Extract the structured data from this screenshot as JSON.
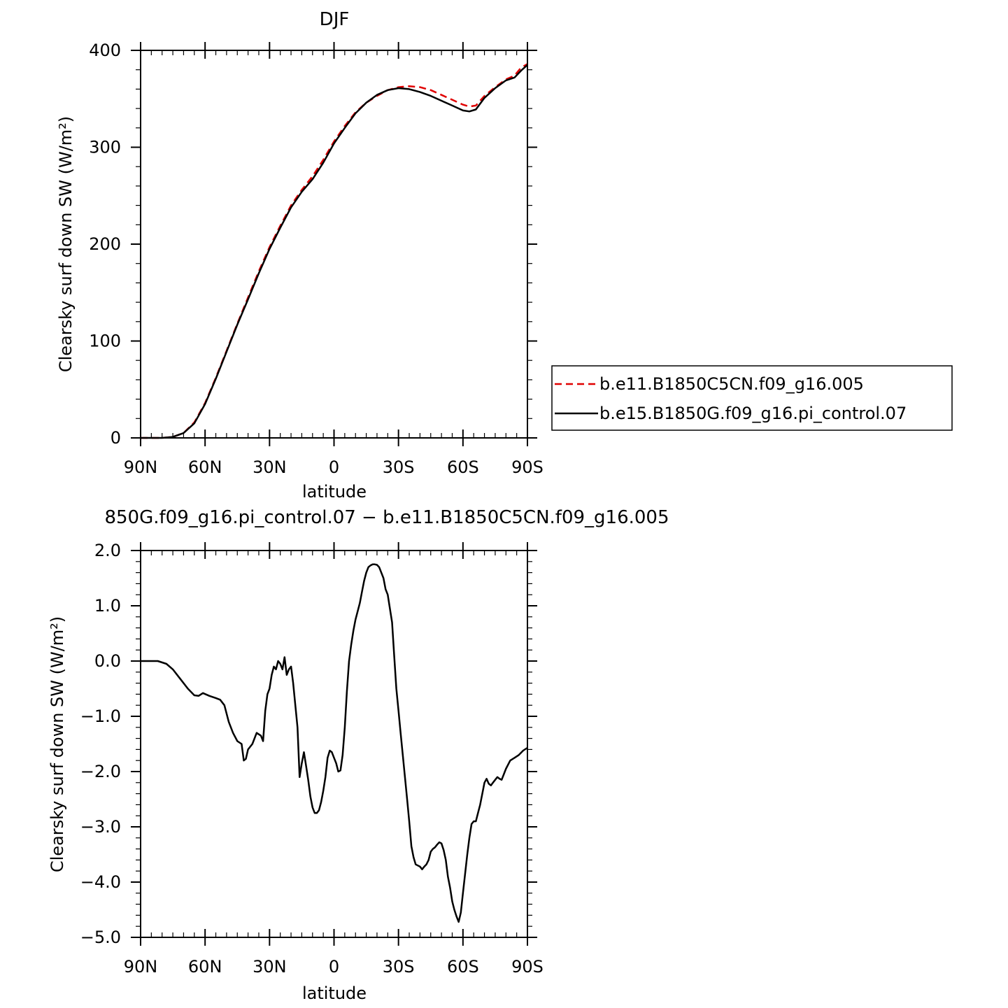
{
  "chart_data": [
    {
      "type": "line",
      "title": "DJF",
      "xlabel": "latitude",
      "ylabel": "Clearsky surf down SW (W/m²)",
      "xlim": [
        -90,
        90
      ],
      "ylim": [
        0,
        400
      ],
      "x_ticks": [
        {
          "value": -90,
          "label": "90N"
        },
        {
          "value": -60,
          "label": "60N"
        },
        {
          "value": -30,
          "label": "30N"
        },
        {
          "value": 0,
          "label": "0"
        },
        {
          "value": 30,
          "label": "30S"
        },
        {
          "value": 60,
          "label": "60S"
        },
        {
          "value": 90,
          "label": "90S"
        }
      ],
      "y_ticks": [
        {
          "value": 0,
          "label": "0"
        },
        {
          "value": 100,
          "label": "100"
        },
        {
          "value": 200,
          "label": "200"
        },
        {
          "value": 300,
          "label": "300"
        },
        {
          "value": 400,
          "label": "400"
        }
      ],
      "legend_position": "right",
      "series": [
        {
          "name": "b.e11.B1850C5CN.f09_g16.005",
          "color": "#e00000",
          "dash": true,
          "points": [
            [
              -90,
              0
            ],
            [
              -80,
              0
            ],
            [
              -75,
              1
            ],
            [
              -70,
              5
            ],
            [
              -65,
              16
            ],
            [
              -60,
              36
            ],
            [
              -55,
              62
            ],
            [
              -50,
              90
            ],
            [
              -45,
              118
            ],
            [
              -40,
              145
            ],
            [
              -35,
              172
            ],
            [
              -30,
              197
            ],
            [
              -25,
              219
            ],
            [
              -20,
              240
            ],
            [
              -15,
              256
            ],
            [
              -10,
              270
            ],
            [
              -5,
              287
            ],
            [
              0,
              306
            ],
            [
              5,
              322
            ],
            [
              10,
              336
            ],
            [
              15,
              346
            ],
            [
              20,
              353
            ],
            [
              25,
              359
            ],
            [
              30,
              362
            ],
            [
              35,
              363
            ],
            [
              40,
              362
            ],
            [
              45,
              359
            ],
            [
              50,
              354
            ],
            [
              55,
              349
            ],
            [
              60,
              344
            ],
            [
              63,
              342
            ],
            [
              66,
              343
            ],
            [
              70,
              353
            ],
            [
              75,
              362
            ],
            [
              80,
              370
            ],
            [
              84,
              374
            ],
            [
              87,
              382
            ],
            [
              90,
              386
            ]
          ]
        },
        {
          "name": "b.e15.B1850G.f09_g16.pi_control.07",
          "color": "#000000",
          "dash": false,
          "points": [
            [
              -90,
              0
            ],
            [
              -80,
              0
            ],
            [
              -75,
              1
            ],
            [
              -70,
              5
            ],
            [
              -65,
              15
            ],
            [
              -60,
              35
            ],
            [
              -55,
              61
            ],
            [
              -50,
              89
            ],
            [
              -45,
              117
            ],
            [
              -40,
              143
            ],
            [
              -35,
              170
            ],
            [
              -30,
              195
            ],
            [
              -25,
              217
            ],
            [
              -20,
              238
            ],
            [
              -15,
              254
            ],
            [
              -10,
              267
            ],
            [
              -5,
              284
            ],
            [
              0,
              304
            ],
            [
              5,
              320
            ],
            [
              10,
              335
            ],
            [
              15,
              346
            ],
            [
              20,
              354
            ],
            [
              25,
              359
            ],
            [
              30,
              361
            ],
            [
              35,
              360
            ],
            [
              40,
              357
            ],
            [
              45,
              353
            ],
            [
              50,
              348
            ],
            [
              55,
              343
            ],
            [
              60,
              338
            ],
            [
              63,
              337
            ],
            [
              66,
              339
            ],
            [
              70,
              351
            ],
            [
              75,
              361
            ],
            [
              80,
              369
            ],
            [
              84,
              372
            ],
            [
              87,
              379
            ],
            [
              90,
              385
            ]
          ]
        }
      ]
    },
    {
      "type": "line",
      "title": "850G.f09_g16.pi_control.07 − b.e11.B1850C5CN.f09_g16.005",
      "xlabel": "latitude",
      "ylabel": "Clearsky surf down SW (W/m²)",
      "xlim": [
        -90,
        90
      ],
      "ylim": [
        -5.0,
        2.0
      ],
      "x_ticks": [
        {
          "value": -90,
          "label": "90N"
        },
        {
          "value": -60,
          "label": "60N"
        },
        {
          "value": -30,
          "label": "30N"
        },
        {
          "value": 0,
          "label": "0"
        },
        {
          "value": 30,
          "label": "30S"
        },
        {
          "value": 60,
          "label": "60S"
        },
        {
          "value": 90,
          "label": "90S"
        }
      ],
      "y_ticks": [
        {
          "value": 2.0,
          "label": "2.0"
        },
        {
          "value": 1.0,
          "label": "1.0"
        },
        {
          "value": 0.0,
          "label": "0.0"
        },
        {
          "value": -1.0,
          "label": "−1.0"
        },
        {
          "value": -2.0,
          "label": "−2.0"
        },
        {
          "value": -3.0,
          "label": "−3.0"
        },
        {
          "value": -4.0,
          "label": "−4.0"
        },
        {
          "value": -5.0,
          "label": "−5.0"
        }
      ],
      "series": [
        {
          "color": "#000000",
          "dash": false,
          "points": [
            [
              -90,
              0
            ],
            [
              -82,
              0
            ],
            [
              -78,
              -0.05
            ],
            [
              -75,
              -0.15
            ],
            [
              -72,
              -0.3
            ],
            [
              -68,
              -0.5
            ],
            [
              -65,
              -0.62
            ],
            [
              -63,
              -0.63
            ],
            [
              -61,
              -0.58
            ],
            [
              -58,
              -0.63
            ],
            [
              -55,
              -0.67
            ],
            [
              -53,
              -0.7
            ],
            [
              -51,
              -0.8
            ],
            [
              -49,
              -1.1
            ],
            [
              -47,
              -1.3
            ],
            [
              -45,
              -1.45
            ],
            [
              -43,
              -1.5
            ],
            [
              -42,
              -1.8
            ],
            [
              -41,
              -1.77
            ],
            [
              -40,
              -1.6
            ],
            [
              -38,
              -1.5
            ],
            [
              -36,
              -1.3
            ],
            [
              -34,
              -1.35
            ],
            [
              -33,
              -1.45
            ],
            [
              -32,
              -0.9
            ],
            [
              -31,
              -0.6
            ],
            [
              -30,
              -0.5
            ],
            [
              -29,
              -0.25
            ],
            [
              -28,
              -0.1
            ],
            [
              -27,
              -0.15
            ],
            [
              -26,
              0
            ],
            [
              -25,
              -0.05
            ],
            [
              -24,
              -0.15
            ],
            [
              -23,
              0.07
            ],
            [
              -22,
              -0.25
            ],
            [
              -21,
              -0.15
            ],
            [
              -20,
              -0.1
            ],
            [
              -19,
              -0.4
            ],
            [
              -18,
              -0.8
            ],
            [
              -17,
              -1.2
            ],
            [
              -16,
              -2.1
            ],
            [
              -15,
              -1.85
            ],
            [
              -14,
              -1.65
            ],
            [
              -13,
              -1.9
            ],
            [
              -12,
              -2.15
            ],
            [
              -11,
              -2.45
            ],
            [
              -10,
              -2.65
            ],
            [
              -9,
              -2.75
            ],
            [
              -8,
              -2.75
            ],
            [
              -7,
              -2.7
            ],
            [
              -6,
              -2.55
            ],
            [
              -5,
              -2.35
            ],
            [
              -4,
              -2.1
            ],
            [
              -3,
              -1.75
            ],
            [
              -2,
              -1.62
            ],
            [
              -1,
              -1.65
            ],
            [
              0,
              -1.75
            ],
            [
              1,
              -1.85
            ],
            [
              2,
              -2.0
            ],
            [
              3,
              -1.98
            ],
            [
              4,
              -1.7
            ],
            [
              5,
              -1.2
            ],
            [
              6,
              -0.55
            ],
            [
              7,
              0.0
            ],
            [
              8,
              0.3
            ],
            [
              9,
              0.55
            ],
            [
              10,
              0.75
            ],
            [
              11,
              0.9
            ],
            [
              12,
              1.05
            ],
            [
              13,
              1.25
            ],
            [
              14,
              1.45
            ],
            [
              15,
              1.6
            ],
            [
              16,
              1.7
            ],
            [
              17,
              1.73
            ],
            [
              18,
              1.75
            ],
            [
              19,
              1.75
            ],
            [
              20,
              1.74
            ],
            [
              21,
              1.7
            ],
            [
              22,
              1.6
            ],
            [
              23,
              1.5
            ],
            [
              24,
              1.3
            ],
            [
              25,
              1.2
            ],
            [
              26,
              0.95
            ],
            [
              27,
              0.7
            ],
            [
              28,
              0.1
            ],
            [
              29,
              -0.5
            ],
            [
              30,
              -0.9
            ],
            [
              31,
              -1.3
            ],
            [
              32,
              -1.7
            ],
            [
              33,
              -2.1
            ],
            [
              34,
              -2.5
            ],
            [
              35,
              -2.9
            ],
            [
              36,
              -3.35
            ],
            [
              37,
              -3.55
            ],
            [
              38,
              -3.68
            ],
            [
              39,
              -3.7
            ],
            [
              40,
              -3.72
            ],
            [
              41,
              -3.77
            ],
            [
              42,
              -3.72
            ],
            [
              43,
              -3.68
            ],
            [
              44,
              -3.6
            ],
            [
              45,
              -3.45
            ],
            [
              46,
              -3.4
            ],
            [
              47,
              -3.37
            ],
            [
              48,
              -3.32
            ],
            [
              49,
              -3.28
            ],
            [
              50,
              -3.3
            ],
            [
              51,
              -3.42
            ],
            [
              52,
              -3.6
            ],
            [
              53,
              -3.9
            ],
            [
              54,
              -4.1
            ],
            [
              55,
              -4.35
            ],
            [
              56,
              -4.5
            ],
            [
              57,
              -4.62
            ],
            [
              58,
              -4.72
            ],
            [
              59,
              -4.55
            ],
            [
              60,
              -4.2
            ],
            [
              61,
              -3.85
            ],
            [
              62,
              -3.5
            ],
            [
              63,
              -3.2
            ],
            [
              64,
              -2.95
            ],
            [
              65,
              -2.9
            ],
            [
              66,
              -2.9
            ],
            [
              67,
              -2.75
            ],
            [
              68,
              -2.6
            ],
            [
              69,
              -2.4
            ],
            [
              70,
              -2.2
            ],
            [
              71,
              -2.13
            ],
            [
              72,
              -2.22
            ],
            [
              73,
              -2.25
            ],
            [
              74,
              -2.2
            ],
            [
              75,
              -2.15
            ],
            [
              76,
              -2.1
            ],
            [
              77,
              -2.13
            ],
            [
              78,
              -2.15
            ],
            [
              79,
              -2.05
            ],
            [
              80,
              -1.95
            ],
            [
              82,
              -1.8
            ],
            [
              84,
              -1.75
            ],
            [
              86,
              -1.7
            ],
            [
              88,
              -1.62
            ],
            [
              90,
              -1.57
            ]
          ]
        }
      ]
    }
  ]
}
